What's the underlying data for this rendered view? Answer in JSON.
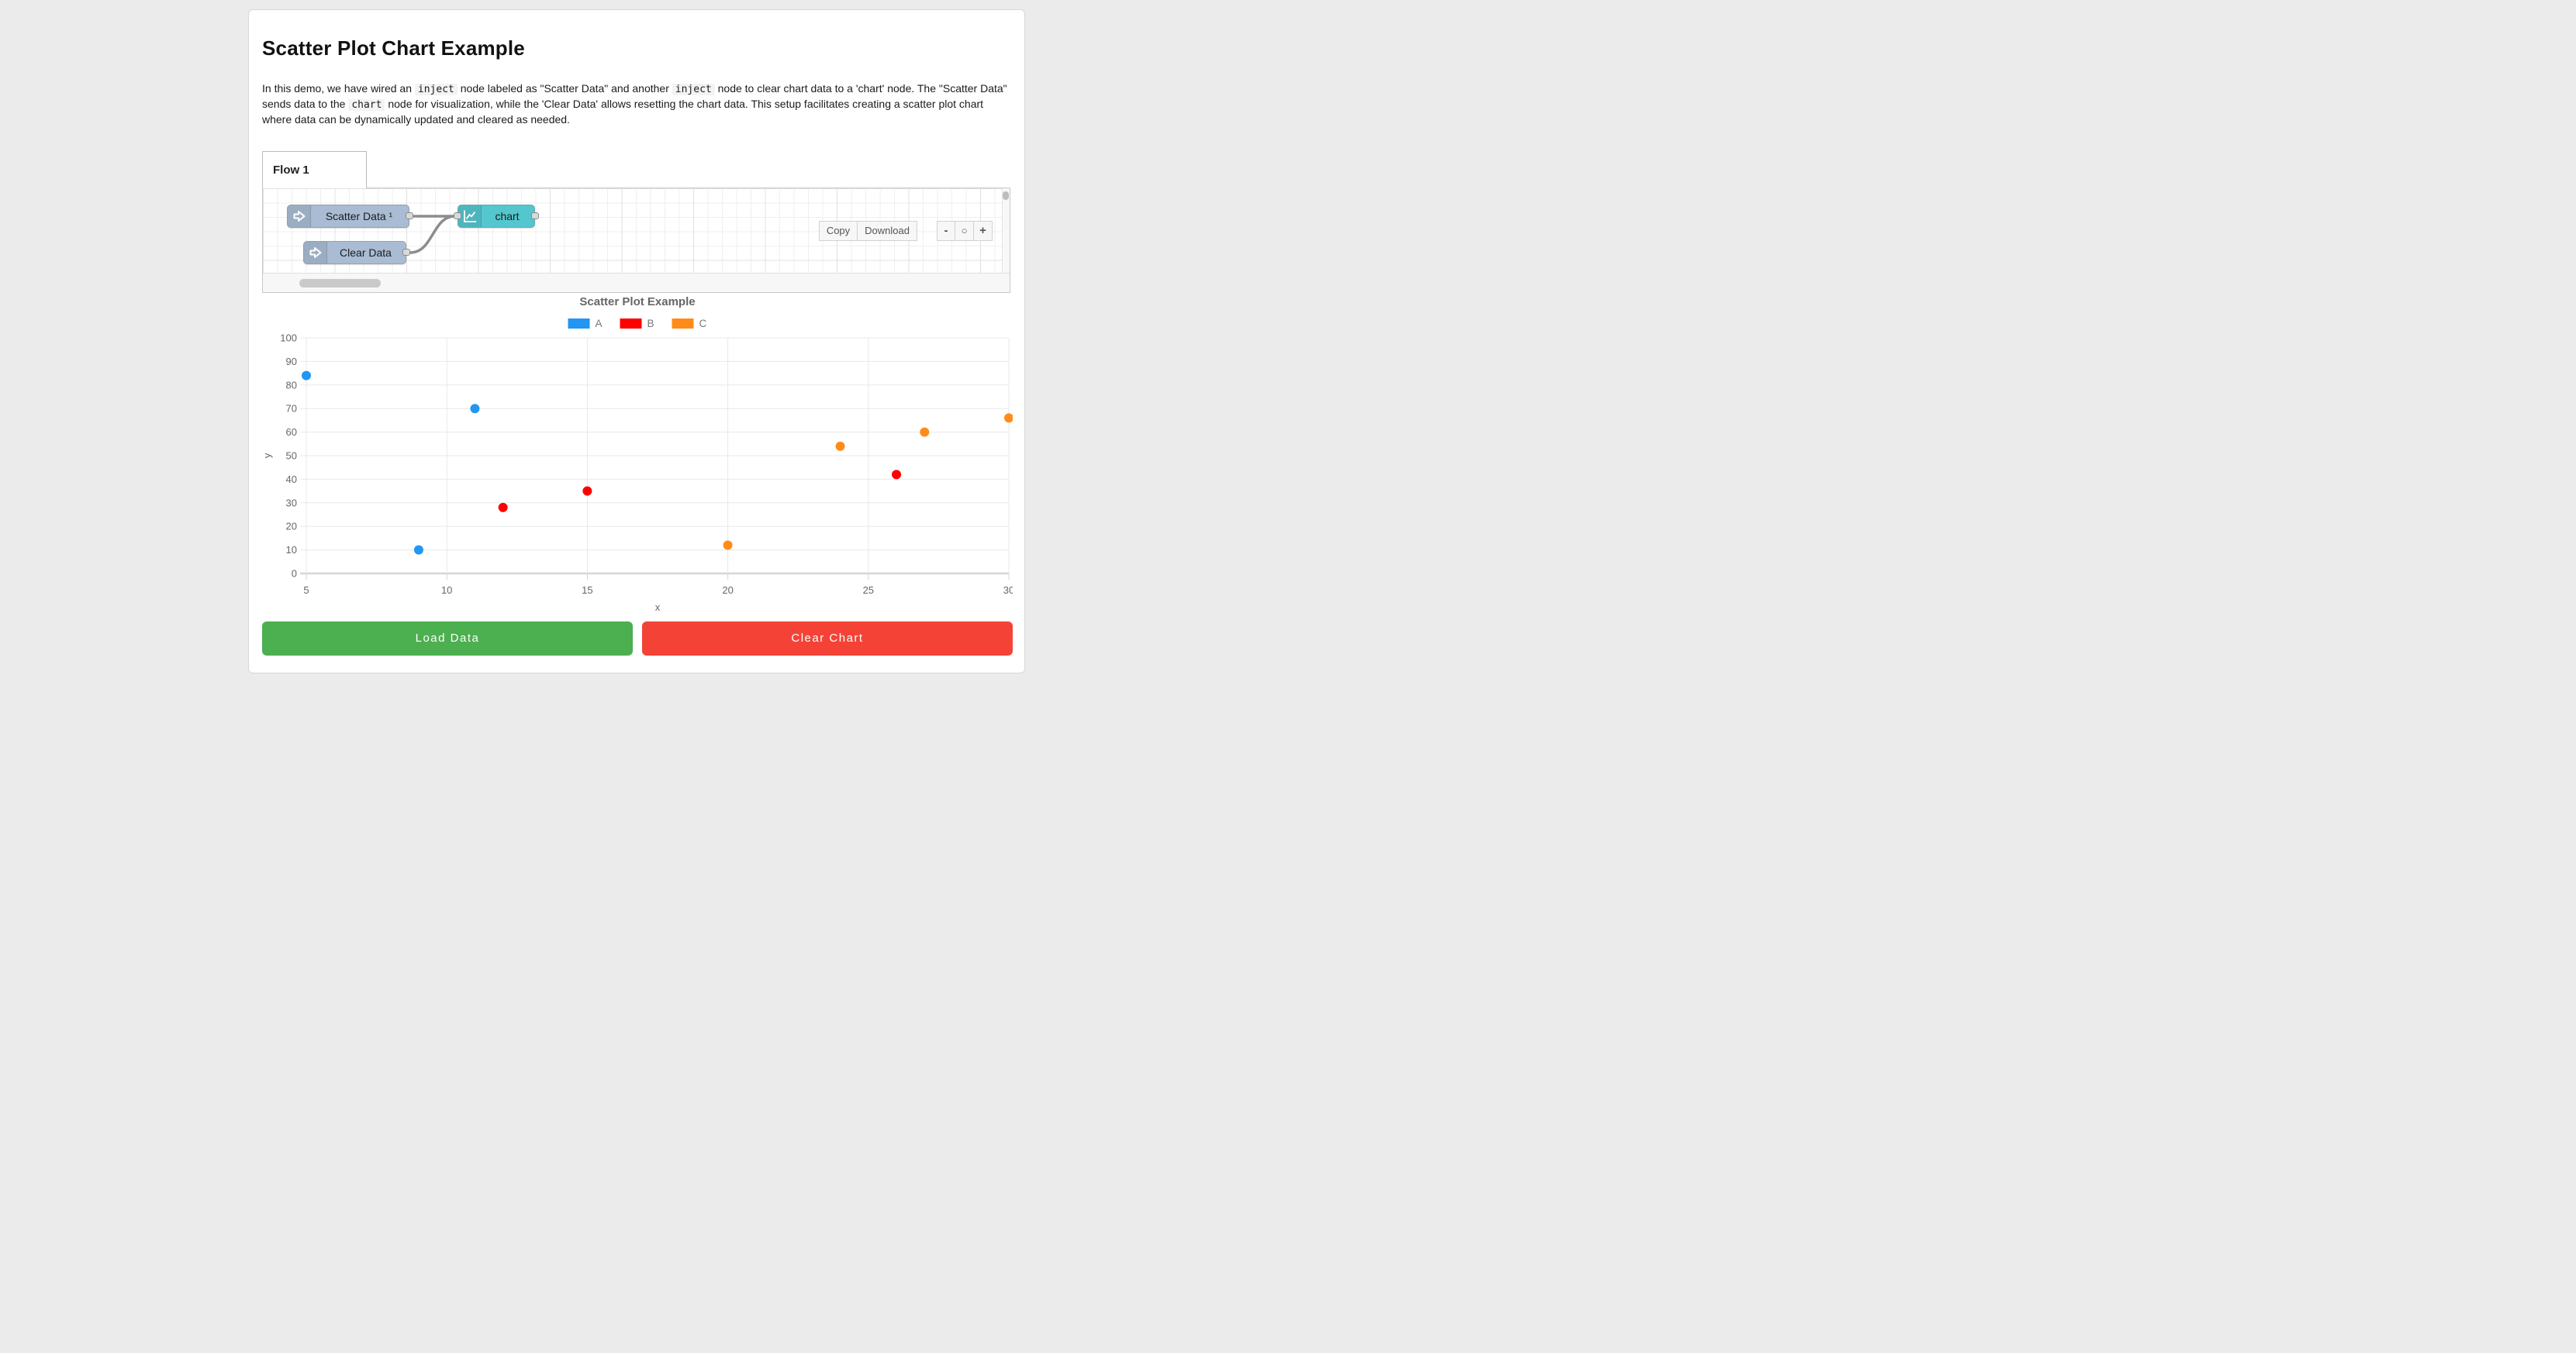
{
  "page": {
    "title": "Scatter Plot Chart Example"
  },
  "intro": {
    "segments": [
      {
        "type": "text",
        "text": "In this demo, we have wired an "
      },
      {
        "type": "code",
        "text": "inject"
      },
      {
        "type": "text",
        "text": " node labeled as \"Scatter Data\" and another "
      },
      {
        "type": "code",
        "text": "inject"
      },
      {
        "type": "text",
        "text": " node to clear chart data to a 'chart' node. The \"Scatter Data\" sends data to the "
      },
      {
        "type": "code",
        "text": "chart"
      },
      {
        "type": "text",
        "text": " node for visualization, while the 'Clear Data' allows resetting the chart data. This setup facilitates creating a scatter plot chart where data can be dynamically updated and cleared as needed."
      }
    ]
  },
  "flow": {
    "tab_label": "Flow 1",
    "nodes": {
      "scatter": {
        "label": "Scatter Data ¹",
        "type": "inject",
        "color": "#a9bcd4"
      },
      "clear": {
        "label": "Clear Data",
        "type": "inject",
        "color": "#a9bcd4"
      },
      "chart": {
        "label": "chart",
        "type": "chart",
        "color": "#54c6ce"
      }
    },
    "toolbar": {
      "copy_label": "Copy",
      "download_label": "Download"
    },
    "zoom": {
      "out_label": "-",
      "reset_label": "○",
      "in_label": "+"
    }
  },
  "chart_data": {
    "type": "scatter",
    "title": "Scatter Plot Example",
    "xlabel": "x",
    "ylabel": "y",
    "xlim": [
      5,
      30
    ],
    "ylim": [
      0,
      100
    ],
    "x_ticks": [
      5,
      10,
      15,
      20,
      25,
      30
    ],
    "y_ticks": [
      0,
      10,
      20,
      30,
      40,
      50,
      60,
      70,
      80,
      90,
      100
    ],
    "grid": true,
    "legend_position": "top",
    "series": [
      {
        "name": "A",
        "color": "#2196F3",
        "points": [
          [
            5,
            84
          ],
          [
            9,
            10
          ],
          [
            11,
            70
          ]
        ]
      },
      {
        "name": "B",
        "color": "#FF0000",
        "points": [
          [
            12,
            28
          ],
          [
            15,
            35
          ],
          [
            26,
            42
          ]
        ]
      },
      {
        "name": "C",
        "color": "#FF8C1A",
        "points": [
          [
            20,
            12
          ],
          [
            24,
            54
          ],
          [
            27,
            60
          ],
          [
            30,
            66
          ]
        ]
      }
    ]
  },
  "actions": {
    "load_label": "Load Data",
    "load_color": "#4CAF50",
    "clear_label": "Clear Chart",
    "clear_color": "#F44336"
  }
}
